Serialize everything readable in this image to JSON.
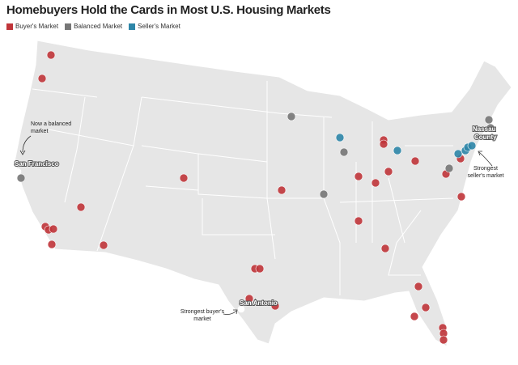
{
  "header": {
    "title": "Homebuyers Hold the Cards in Most U.S. Housing Markets"
  },
  "legend": [
    "Buyer's Market",
    "Balanced Market",
    "Seller's Market"
  ],
  "labels": {
    "san_francisco": "San Francisco",
    "nassau": [
      "Nassau",
      "County"
    ],
    "san_antonio": "San Antonio"
  },
  "annotations": {
    "balanced": [
      "Now a balanced",
      "market"
    ],
    "seller": [
      "Strongest",
      "seller's market"
    ],
    "buyer": [
      "Strongest buyer's",
      "market"
    ]
  }
}
